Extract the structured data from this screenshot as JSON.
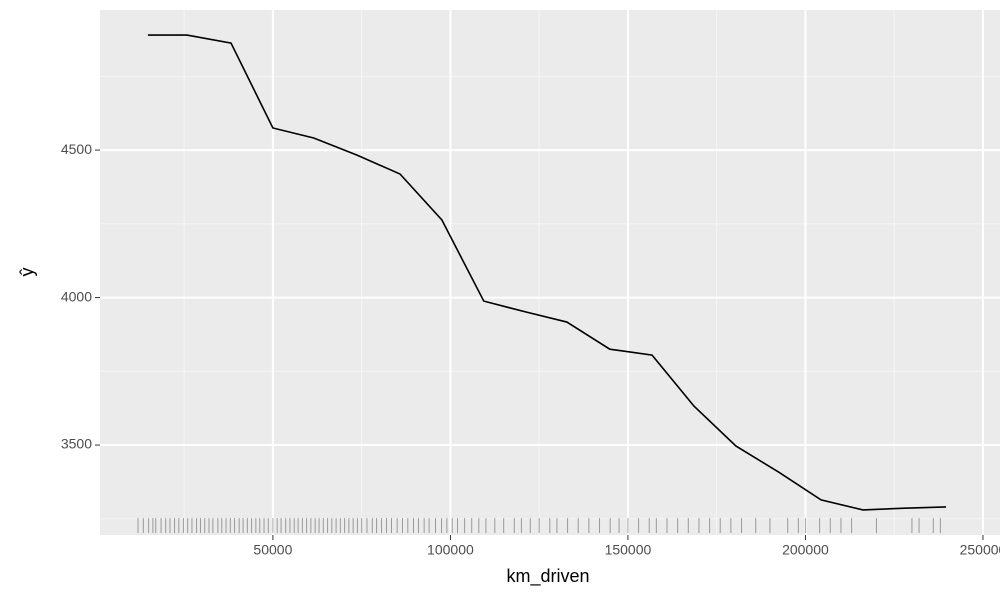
{
  "chart_data": {
    "type": "line",
    "xlabel": "km_driven",
    "ylabel": "ŷ",
    "x": [
      14800,
      25800,
      38200,
      50000,
      61500,
      73700,
      85800,
      97600,
      109400,
      121300,
      132800,
      144900,
      156800,
      168600,
      180400,
      192500,
      204400,
      216200,
      228000,
      239600
    ],
    "series": [
      {
        "color": "#000000",
        "values": [
          4890,
          4890,
          4863,
          4575,
          4541,
          4483,
          4419,
          4263,
          3988,
          3951,
          3917,
          3825,
          3805,
          3632,
          3497,
          3408,
          3314,
          3280,
          3286,
          3290
        ]
      }
    ],
    "rug": [
      12000,
      13500,
      15000,
      16200,
      17000,
      18500,
      19800,
      21000,
      22300,
      23500,
      24800,
      26000,
      27200,
      28500,
      29600,
      30800,
      32000,
      33100,
      34500,
      35600,
      36800,
      38000,
      39200,
      40500,
      41600,
      42800,
      44000,
      45200,
      46300,
      47500,
      48700,
      50000,
      51200,
      52300,
      53600,
      54800,
      56000,
      57100,
      58300,
      59500,
      60700,
      61900,
      63000,
      64200,
      65400,
      66600,
      67800,
      69000,
      70200,
      71400,
      72600,
      73800,
      75000,
      76500,
      78000,
      79200,
      80600,
      82000,
      83400,
      85000,
      86500,
      88000,
      89600,
      91000,
      92600,
      94000,
      95800,
      97500,
      99000,
      100500,
      102000,
      104000,
      106000,
      108000,
      110000,
      112500,
      115000,
      118000,
      120000,
      122500,
      125000,
      128000,
      130000,
      133000,
      136000,
      139000,
      142000,
      145000,
      147500,
      150000,
      153000,
      156000,
      158000,
      161000,
      164000,
      167000,
      170000,
      173000,
      176000,
      179000,
      182000,
      186000,
      190000,
      195000,
      198000,
      200000,
      204000,
      207000,
      210000,
      213000,
      220000,
      230000,
      232000,
      236000,
      238000
    ],
    "xlim": [
      1300,
      254800
    ],
    "ylim": [
      3195,
      4975
    ],
    "xticks": [
      50000,
      100000,
      150000,
      200000,
      250000
    ],
    "yticks": [
      3500,
      4000,
      4500
    ],
    "xminor": [
      25000,
      75000,
      125000,
      175000,
      225000
    ],
    "yminor": [
      3250,
      3750,
      4250,
      4750
    ],
    "grid": true
  }
}
